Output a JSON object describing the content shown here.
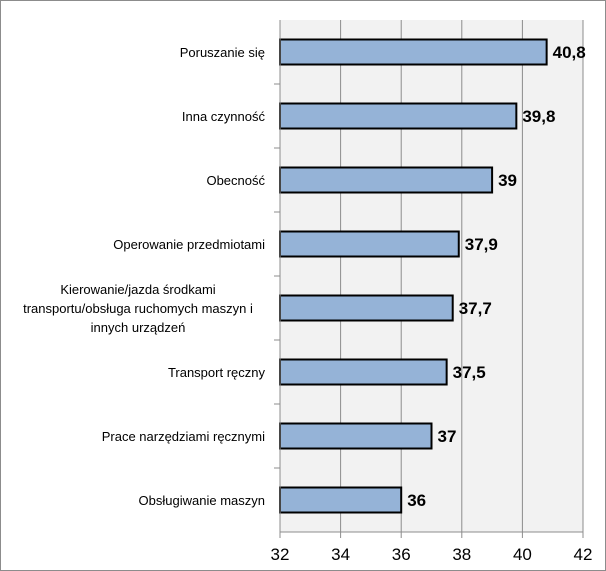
{
  "chart_data": {
    "type": "bar",
    "orientation": "horizontal",
    "categories": [
      "Poruszanie się",
      "Inna czynność",
      "Obecność",
      "Operowanie przedmiotami",
      "Kierowanie/jazda środkami transportu/obsługa ruchomych maszyn i innych urządzeń",
      "Transport ręczny",
      "Prace narzędziami ręcznymi",
      "Obsługiwanie maszyn"
    ],
    "category_lines": [
      [
        "Poruszanie się"
      ],
      [
        "Inna czynność"
      ],
      [
        "Obecność"
      ],
      [
        "Operowanie przedmiotami"
      ],
      [
        "Kierowanie/jazda środkami",
        "transportu/obsługa ruchomych maszyn i",
        "innych urządzeń"
      ],
      [
        "Transport ręczny"
      ],
      [
        "Prace narzędziami ręcznymi"
      ],
      [
        "Obsługiwanie maszyn"
      ]
    ],
    "values": [
      40.8,
      39.8,
      39,
      37.9,
      37.7,
      37.5,
      37,
      36
    ],
    "value_labels": [
      "40,8",
      "39,8",
      "39",
      "37,9",
      "37,7",
      "37,5",
      "37",
      "36"
    ],
    "xlim": [
      32,
      42
    ],
    "xticks": [
      32,
      34,
      36,
      38,
      40,
      42
    ],
    "xtick_labels": [
      "32",
      "34",
      "36",
      "38",
      "40",
      "42"
    ],
    "bar_color": "#95b3d7",
    "grid": true,
    "legend": false
  }
}
